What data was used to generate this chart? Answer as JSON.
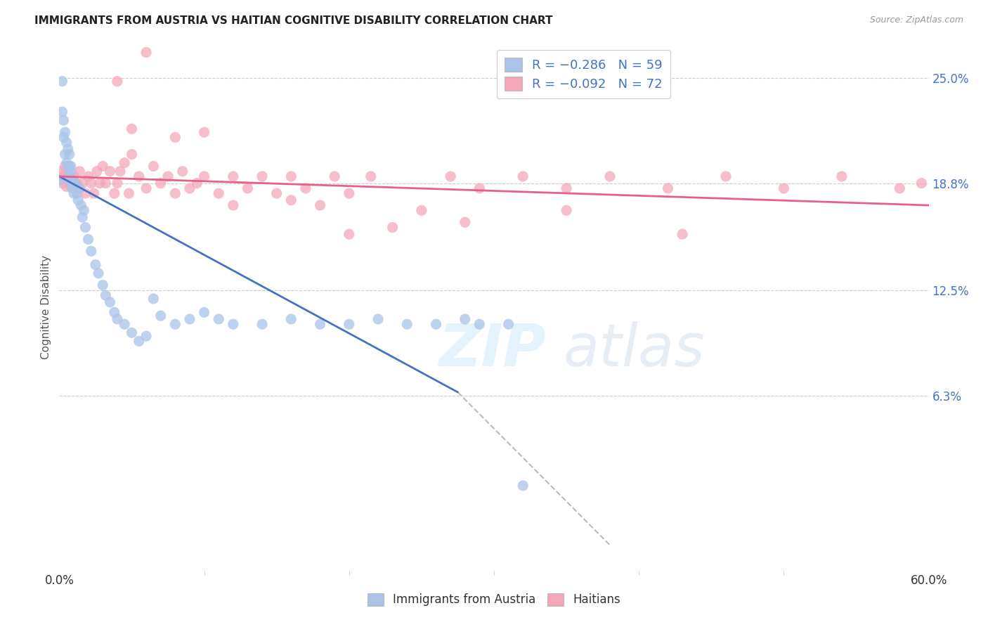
{
  "title": "IMMIGRANTS FROM AUSTRIA VS HAITIAN COGNITIVE DISABILITY CORRELATION CHART",
  "source": "Source: ZipAtlas.com",
  "ylabel": "Cognitive Disability",
  "ytick_values": [
    0.063,
    0.125,
    0.188,
    0.25
  ],
  "ytick_labels": [
    "6.3%",
    "12.5%",
    "18.8%",
    "25.0%"
  ],
  "xlim": [
    0.0,
    0.6
  ],
  "ylim": [
    -0.04,
    0.27
  ],
  "legend_color1": "#aac4e8",
  "legend_color2": "#f4a7b9",
  "dot_color_austria": "#aac4e8",
  "dot_color_haiti": "#f4a7b9",
  "line_color_austria": "#4472C4",
  "line_color_haiti": "#e8608a",
  "line_color_dashed": "#bbbbbb",
  "watermark_zip": "ZIP",
  "watermark_atlas": "atlas",
  "background_color": "#ffffff",
  "austria_x": [
    0.001,
    0.002,
    0.002,
    0.003,
    0.003,
    0.004,
    0.004,
    0.005,
    0.005,
    0.006,
    0.006,
    0.007,
    0.007,
    0.008,
    0.008,
    0.008,
    0.009,
    0.009,
    0.01,
    0.01,
    0.011,
    0.012,
    0.013,
    0.014,
    0.015,
    0.016,
    0.017,
    0.018,
    0.02,
    0.022,
    0.025,
    0.027,
    0.03,
    0.032,
    0.035,
    0.038,
    0.04,
    0.045,
    0.05,
    0.055,
    0.06,
    0.065,
    0.07,
    0.08,
    0.09,
    0.1,
    0.11,
    0.12,
    0.14,
    0.16,
    0.18,
    0.2,
    0.22,
    0.24,
    0.26,
    0.28,
    0.29,
    0.31,
    0.32
  ],
  "austria_y": [
    0.19,
    0.248,
    0.23,
    0.225,
    0.215,
    0.205,
    0.218,
    0.212,
    0.2,
    0.208,
    0.198,
    0.205,
    0.192,
    0.198,
    0.188,
    0.195,
    0.185,
    0.19,
    0.182,
    0.188,
    0.188,
    0.182,
    0.178,
    0.185,
    0.175,
    0.168,
    0.172,
    0.162,
    0.155,
    0.148,
    0.14,
    0.135,
    0.128,
    0.122,
    0.118,
    0.112,
    0.108,
    0.105,
    0.1,
    0.095,
    0.098,
    0.12,
    0.11,
    0.105,
    0.108,
    0.112,
    0.108,
    0.105,
    0.105,
    0.108,
    0.105,
    0.105,
    0.108,
    0.105,
    0.105,
    0.108,
    0.105,
    0.105,
    0.01
  ],
  "haiti_x": [
    0.001,
    0.002,
    0.003,
    0.004,
    0.005,
    0.006,
    0.007,
    0.008,
    0.01,
    0.012,
    0.014,
    0.016,
    0.018,
    0.02,
    0.022,
    0.024,
    0.026,
    0.028,
    0.03,
    0.032,
    0.035,
    0.038,
    0.04,
    0.042,
    0.045,
    0.048,
    0.05,
    0.055,
    0.06,
    0.065,
    0.07,
    0.075,
    0.08,
    0.085,
    0.09,
    0.095,
    0.1,
    0.11,
    0.12,
    0.13,
    0.14,
    0.15,
    0.16,
    0.17,
    0.18,
    0.19,
    0.2,
    0.215,
    0.23,
    0.25,
    0.27,
    0.29,
    0.32,
    0.35,
    0.38,
    0.42,
    0.46,
    0.5,
    0.54,
    0.58,
    0.04,
    0.05,
    0.06,
    0.08,
    0.1,
    0.12,
    0.16,
    0.2,
    0.28,
    0.35,
    0.43,
    0.595
  ],
  "haiti_y": [
    0.195,
    0.188,
    0.192,
    0.198,
    0.186,
    0.192,
    0.198,
    0.186,
    0.192,
    0.188,
    0.195,
    0.188,
    0.182,
    0.192,
    0.188,
    0.182,
    0.195,
    0.188,
    0.198,
    0.188,
    0.195,
    0.182,
    0.188,
    0.195,
    0.2,
    0.182,
    0.205,
    0.192,
    0.185,
    0.198,
    0.188,
    0.192,
    0.182,
    0.195,
    0.185,
    0.188,
    0.192,
    0.182,
    0.192,
    0.185,
    0.192,
    0.182,
    0.192,
    0.185,
    0.175,
    0.192,
    0.182,
    0.192,
    0.162,
    0.172,
    0.192,
    0.185,
    0.192,
    0.185,
    0.192,
    0.185,
    0.192,
    0.185,
    0.192,
    0.185,
    0.248,
    0.22,
    0.265,
    0.215,
    0.218,
    0.175,
    0.178,
    0.158,
    0.165,
    0.172,
    0.158,
    0.188
  ]
}
